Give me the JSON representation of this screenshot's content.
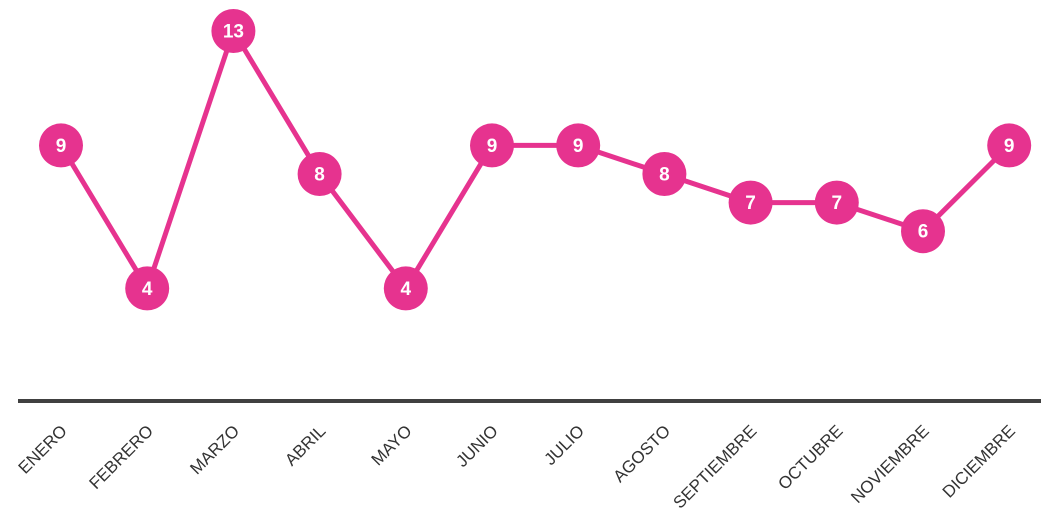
{
  "chart_data": {
    "type": "line",
    "title": "",
    "xlabel": "",
    "ylabel": "",
    "categories": [
      "ENERO",
      "FEBRERO",
      "MARZO",
      "ABRIL",
      "MAYO",
      "JUNIO",
      "JULIO",
      "AGOSTO",
      "SEPTIEMBRE",
      "OCTUBRE",
      "NOVIEMBRE",
      "DICIEMBRE"
    ],
    "series": [
      {
        "values": [
          9,
          4,
          13,
          8,
          4,
          9,
          9,
          8,
          7,
          7,
          6,
          9
        ]
      }
    ],
    "data_labels": [
      "9",
      "4",
      "13",
      "8",
      "4",
      "9",
      "9",
      "8",
      "7",
      "7",
      "6",
      "9"
    ],
    "ylim": [
      0,
      14
    ],
    "grid": false,
    "legend": "none",
    "colors": {
      "series": "#e6338f",
      "axis": "#404040",
      "label_text": "#ffffff",
      "tick_text": "#333333"
    }
  }
}
